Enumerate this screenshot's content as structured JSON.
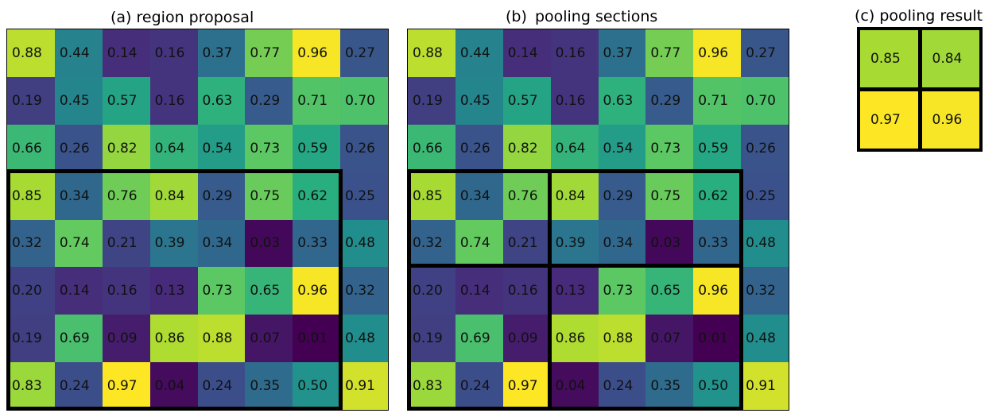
{
  "panels": {
    "a": {
      "label": "(a)",
      "title": "region proposal"
    },
    "b": {
      "label": "(b)",
      "title": "pooling sections"
    },
    "c": {
      "label": "(c)",
      "title": "pooling result"
    }
  },
  "grid_values": [
    [
      "0.88",
      "0.44",
      "0.14",
      "0.16",
      "0.37",
      "0.77",
      "0.96",
      "0.27"
    ],
    [
      "0.19",
      "0.45",
      "0.57",
      "0.16",
      "0.63",
      "0.29",
      "0.71",
      "0.70"
    ],
    [
      "0.66",
      "0.26",
      "0.82",
      "0.64",
      "0.54",
      "0.73",
      "0.59",
      "0.26"
    ],
    [
      "0.85",
      "0.34",
      "0.76",
      "0.84",
      "0.29",
      "0.75",
      "0.62",
      "0.25"
    ],
    [
      "0.32",
      "0.74",
      "0.21",
      "0.39",
      "0.34",
      "0.03",
      "0.33",
      "0.48"
    ],
    [
      "0.20",
      "0.14",
      "0.16",
      "0.13",
      "0.73",
      "0.65",
      "0.96",
      "0.32"
    ],
    [
      "0.19",
      "0.69",
      "0.09",
      "0.86",
      "0.88",
      "0.07",
      "0.01",
      "0.48"
    ],
    [
      "0.83",
      "0.24",
      "0.97",
      "0.04",
      "0.24",
      "0.35",
      "0.50",
      "0.91"
    ]
  ],
  "result_values": [
    [
      "0.85",
      "0.84"
    ],
    [
      "0.97",
      "0.96"
    ]
  ],
  "colormap": "viridis",
  "colors": {
    "border": "#000000",
    "text": "#111111"
  }
}
